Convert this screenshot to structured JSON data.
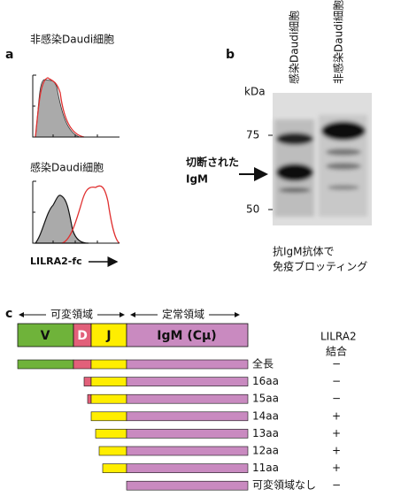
{
  "panels": {
    "a": {
      "label": "a",
      "top_title": "非感染Daudi細胞",
      "bottom_title": "感染Daudi細胞",
      "axis_label": "LILRA2-fc"
    },
    "b": {
      "label": "b",
      "lanes": [
        "感染Daudi細胞",
        "非感染Daudi細胞"
      ],
      "unit": "kDa",
      "markers": [
        "75",
        "50"
      ],
      "arrow_label": [
        "切断された",
        "IgM"
      ],
      "caption": [
        "抗IgM抗体で",
        "免疫ブロッティング"
      ]
    },
    "c": {
      "label": "c",
      "regions": [
        "可変領域",
        "定常領域"
      ],
      "domains": [
        "V",
        "D",
        "J",
        "IgM (Cμ)"
      ],
      "binding_header": [
        "LILRA2",
        "結合"
      ],
      "rows": [
        {
          "name": "全長",
          "binding": "−"
        },
        {
          "name": "16aa",
          "binding": "−"
        },
        {
          "name": "15aa",
          "binding": "−"
        },
        {
          "name": "14aa",
          "binding": "+"
        },
        {
          "name": "13aa",
          "binding": "+"
        },
        {
          "name": "12aa",
          "binding": "+"
        },
        {
          "name": "11aa",
          "binding": "+"
        },
        {
          "name": "可変領域なし",
          "binding": "−"
        }
      ]
    }
  }
}
